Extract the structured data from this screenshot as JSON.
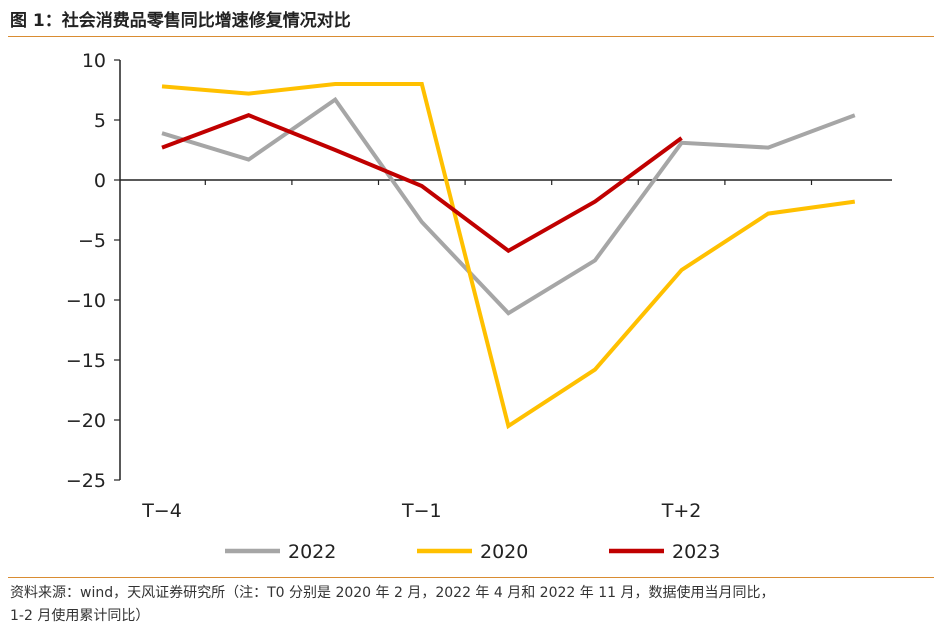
{
  "header": {
    "title": "图 1：社会消费品零售同比增速修复情况对比"
  },
  "footer": {
    "source_line1": "资料来源：wind，天风证券研究所（注：T0 分别是 2020 年 2 月，2022 年 4 月和 2022 年 11 月，数据使用当月同比，",
    "source_line2": "1-2 月使用累计同比）"
  },
  "chart_data": {
    "type": "line",
    "title": "",
    "xlabel": "",
    "ylabel": "",
    "x": [
      "T-4",
      "T-3",
      "T-2",
      "T-1",
      "T0",
      "T+1",
      "T+2",
      "T+3",
      "T+4"
    ],
    "x_tick_labels": [
      "T−4",
      "T−1",
      "T+2"
    ],
    "ylim": [
      -25,
      10
    ],
    "y_ticks": [
      10,
      5,
      0,
      -5,
      -10,
      -15,
      -20,
      -25
    ],
    "y_tick_labels": [
      "10",
      "5",
      "0",
      "−5",
      "−10",
      "−15",
      "−20",
      "−25"
    ],
    "grid": false,
    "legend_position": "bottom",
    "series": [
      {
        "name": "2022",
        "color": "#a6a6a6",
        "values": [
          3.9,
          1.7,
          6.7,
          -3.5,
          -11.1,
          -6.7,
          3.1,
          2.7,
          5.4
        ]
      },
      {
        "name": "2020",
        "color": "#ffc000",
        "values": [
          7.8,
          7.2,
          8.0,
          8.0,
          -20.5,
          -15.8,
          -7.5,
          -2.8,
          -1.8
        ]
      },
      {
        "name": "2023",
        "color": "#c00000",
        "values": [
          2.7,
          5.4,
          2.5,
          -0.5,
          -5.9,
          -1.8,
          3.5,
          null,
          null
        ]
      }
    ]
  }
}
